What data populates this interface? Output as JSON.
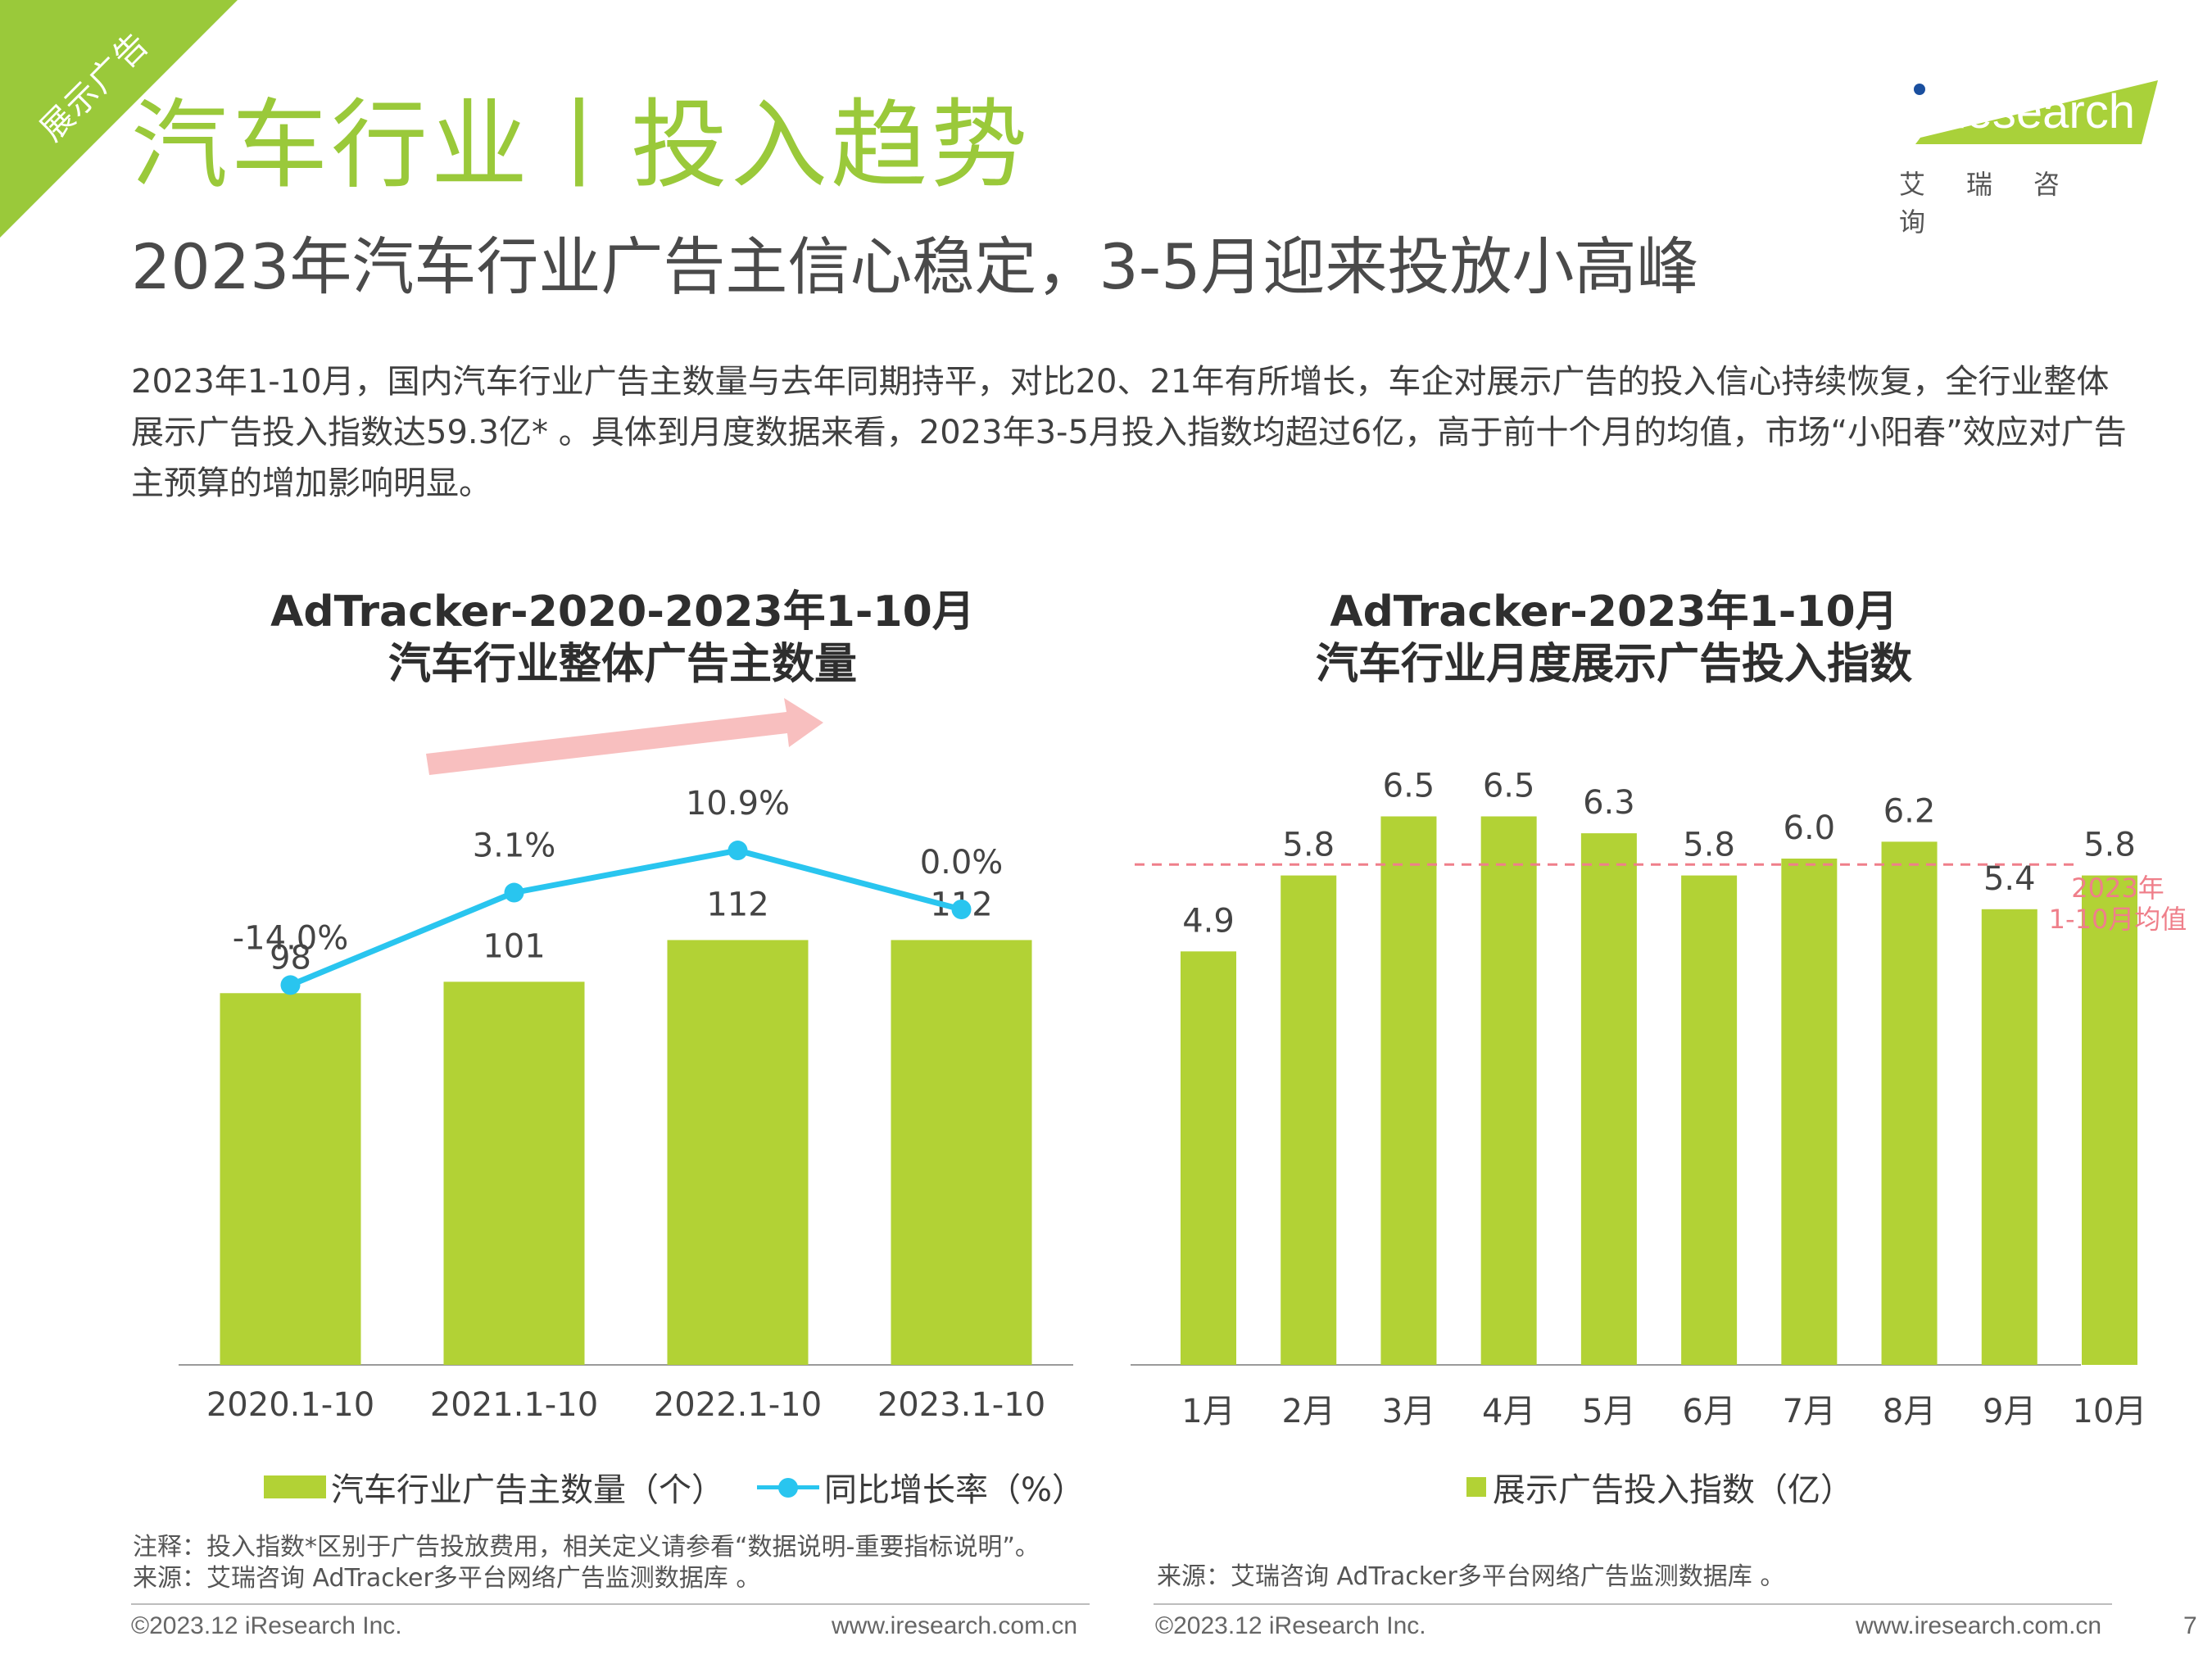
{
  "header": {
    "corner_tag": "展示广告",
    "title": "汽车行业丨投入趋势",
    "subtitle": "2023年汽车行业广告主信心稳定，3-5月迎来投放小高峰",
    "logo_text": "iResearch",
    "logo_sub": "艾瑞咨询",
    "brand_color": "#9ac93a"
  },
  "intro_text": "2023年1-10月，国内汽车行业广告主数量与去年同期持平，对比20、21年有所增长，车企对展示广告的投入信心持续恢复，全行业整体展示广告投入指数达59.3亿* 。具体到月度数据来看，2023年3-5月投入指数均超过6亿，高于前十个月的均值，市场“小阳春”效应对广告主预算的增加影响明显。",
  "chart_data": [
    {
      "type": "bar",
      "title_line1": "AdTracker-2020-2023年1-10月",
      "title_line2": "汽车行业整体广告主数量",
      "categories": [
        "2020.1-10",
        "2021.1-10",
        "2022.1-10",
        "2023.1-10"
      ],
      "series": [
        {
          "name": "汽车行业广告主数量（个）",
          "type": "bar",
          "values": [
            98,
            101,
            112,
            112
          ],
          "labels": [
            "98",
            "101",
            "112",
            "112"
          ],
          "color": "#b2d235"
        },
        {
          "name": "同比增长率（%）",
          "type": "line",
          "values": [
            -14.0,
            3.1,
            10.9,
            0.0
          ],
          "labels": [
            "-14.0%",
            "3.1%",
            "10.9%",
            "0.0%"
          ],
          "color": "#29c5ef"
        }
      ],
      "trend_arrow_color": "#f7b8b8",
      "grid": false,
      "legend_position": "bottom"
    },
    {
      "type": "bar",
      "title_line1": "AdTracker-2023年1-10月",
      "title_line2": "汽车行业月度展示广告投入指数",
      "categories": [
        "1月",
        "2月",
        "3月",
        "4月",
        "5月",
        "6月",
        "7月",
        "8月",
        "9月",
        "10月"
      ],
      "series": [
        {
          "name": "展示广告投入指数（亿）",
          "values": [
            4.9,
            5.8,
            6.5,
            6.5,
            6.3,
            5.8,
            6.0,
            6.2,
            5.4,
            5.8
          ],
          "labels": [
            "4.9",
            "5.8",
            "6.5",
            "6.5",
            "6.3",
            "5.8",
            "6.0",
            "6.2",
            "5.4",
            "5.8"
          ],
          "color": "#b2d235"
        }
      ],
      "average_line": {
        "value": 5.93,
        "label_line1": "2023年",
        "label_line2": "1-10月均值",
        "color": "#ef7f8a"
      },
      "grid": false,
      "legend_position": "bottom"
    }
  ],
  "notes": {
    "left_note": "注释：投入指数*区别于广告投放费用，相关定义请参看“数据说明-重要指标说明”。",
    "left_source": "来源：艾瑞咨询 AdTracker多平台网络广告监测数据库 。",
    "right_source": "来源：艾瑞咨询 AdTracker多平台网络广告监测数据库 。"
  },
  "footer": {
    "copyright": "©2023.12 iResearch Inc.",
    "url": "www.iresearch.com.cn",
    "page_number": "7"
  }
}
